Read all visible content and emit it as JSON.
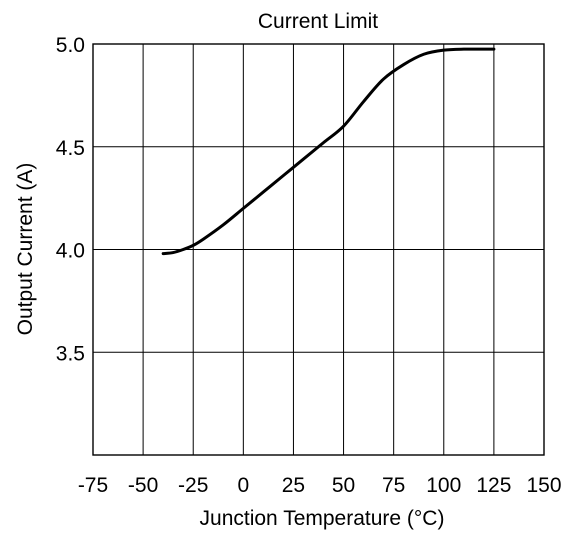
{
  "chart_data": {
    "type": "line",
    "title": "Current Limit",
    "xlabel": "Junction Temperature (°C)",
    "ylabel": "Output Current (A)",
    "xlim": [
      -75,
      150
    ],
    "ylim": [
      3.0,
      5.0
    ],
    "x_ticks": [
      -75,
      -50,
      -25,
      0,
      25,
      50,
      75,
      100,
      125,
      150
    ],
    "y_ticks": [
      3.5,
      4.0,
      4.5,
      5.0
    ],
    "x_tick_labels": [
      "-75",
      "-50",
      "-25",
      "0",
      "25",
      "50",
      "75",
      "100",
      "125",
      "150"
    ],
    "y_tick_labels": [
      "3.5",
      "4.0",
      "4.5",
      "5.0"
    ],
    "grid": true,
    "legend": "none",
    "series": [
      {
        "color": "#000000",
        "x": [
          -40,
          -35,
          -30,
          -25,
          -20,
          -10,
          0,
          10,
          20,
          30,
          40,
          50,
          60,
          70,
          80,
          90,
          100,
          110,
          125
        ],
        "y": [
          3.98,
          3.985,
          4.0,
          4.02,
          4.05,
          4.12,
          4.2,
          4.28,
          4.36,
          4.44,
          4.52,
          4.6,
          4.72,
          4.83,
          4.9,
          4.95,
          4.97,
          4.975,
          4.975
        ]
      }
    ]
  }
}
